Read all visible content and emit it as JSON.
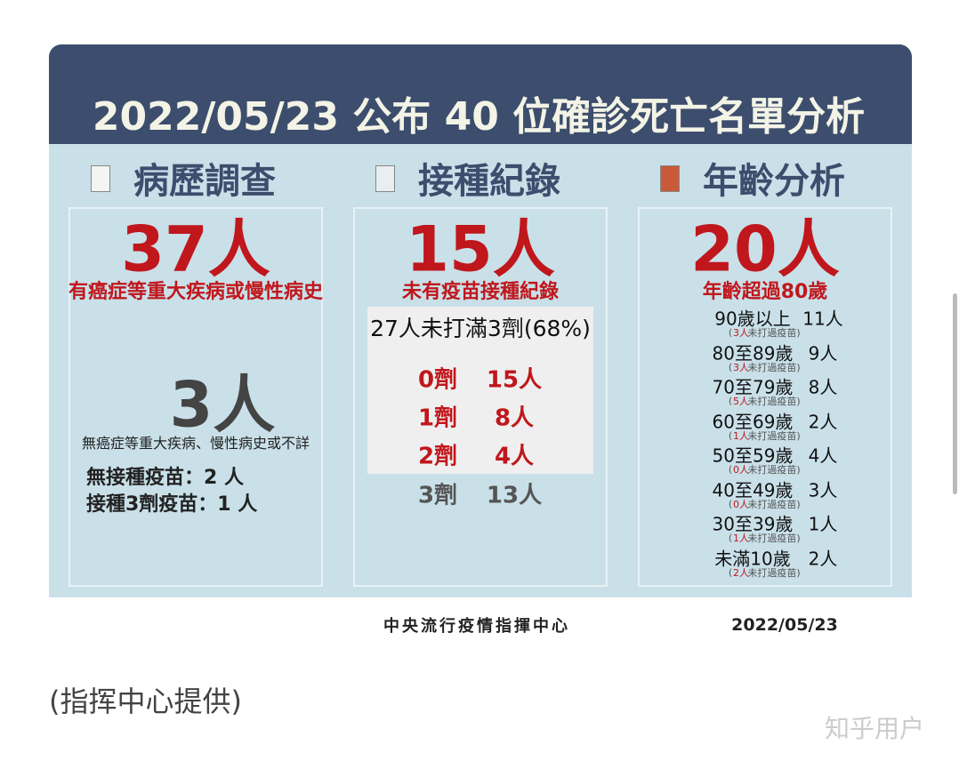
{
  "header": {
    "title": "2022/05/23 公布 40 位確診死亡名單分析"
  },
  "columns": [
    {
      "heading": "病歷調查",
      "big": "37人",
      "big_caption": "有癌症等重大疾病或慢性病史",
      "second_big": "3人",
      "second_caption": "無癌症等重大疾病、慢性病史或不詳",
      "lines": [
        "無接種疫苗：2 人",
        "接種3劑疫苗：1 人"
      ]
    },
    {
      "heading": "接種紀錄",
      "big": "15人",
      "big_caption": "未有疫苗接種紀錄",
      "box_title": "27人未打滿3劑(68%)",
      "rows": [
        [
          "0劑",
          "15人"
        ],
        [
          "1劑",
          "8人"
        ],
        [
          "2劑",
          "4人"
        ]
      ],
      "extra_row": [
        "3劑",
        "13人"
      ]
    },
    {
      "heading": "年齡分析",
      "big": "20人",
      "big_caption": "年齡超過80歲",
      "rows": [
        {
          "age": "90歲以上",
          "count": "11人",
          "note_open": "(",
          "note_count": "3人",
          "note_text": "未打過疫苗)"
        },
        {
          "age": "80至89歲",
          "count": "9人",
          "note_open": "(",
          "note_count": "3人",
          "note_text": "未打過疫苗)"
        },
        {
          "age": "70至79歲",
          "count": "8人",
          "note_open": "(",
          "note_count": "5人",
          "note_text": "未打過疫苗)"
        },
        {
          "age": "60至69歲",
          "count": "2人",
          "note_open": "(",
          "note_count": "1人",
          "note_text": "未打過疫苗)"
        },
        {
          "age": "50至59歲",
          "count": "4人",
          "note_open": "(",
          "note_count": "0人",
          "note_text": "未打過疫苗)"
        },
        {
          "age": "40至49歲",
          "count": "3人",
          "note_open": "(",
          "note_count": "0人",
          "note_text": "未打過疫苗)"
        },
        {
          "age": "30至39歲",
          "count": "1人",
          "note_open": "(",
          "note_count": "1人",
          "note_text": "未打過疫苗)"
        },
        {
          "age": "未滿10歲",
          "count": "2人",
          "note_open": "(",
          "note_count": "2人",
          "note_text": "未打過疫苗)"
        }
      ]
    }
  ],
  "footer": {
    "source": "中央流行疫情指揮中心",
    "date": "2022/05/23"
  },
  "post": {
    "caption": "(指挥中心提供)",
    "watermark": "知乎用户"
  }
}
